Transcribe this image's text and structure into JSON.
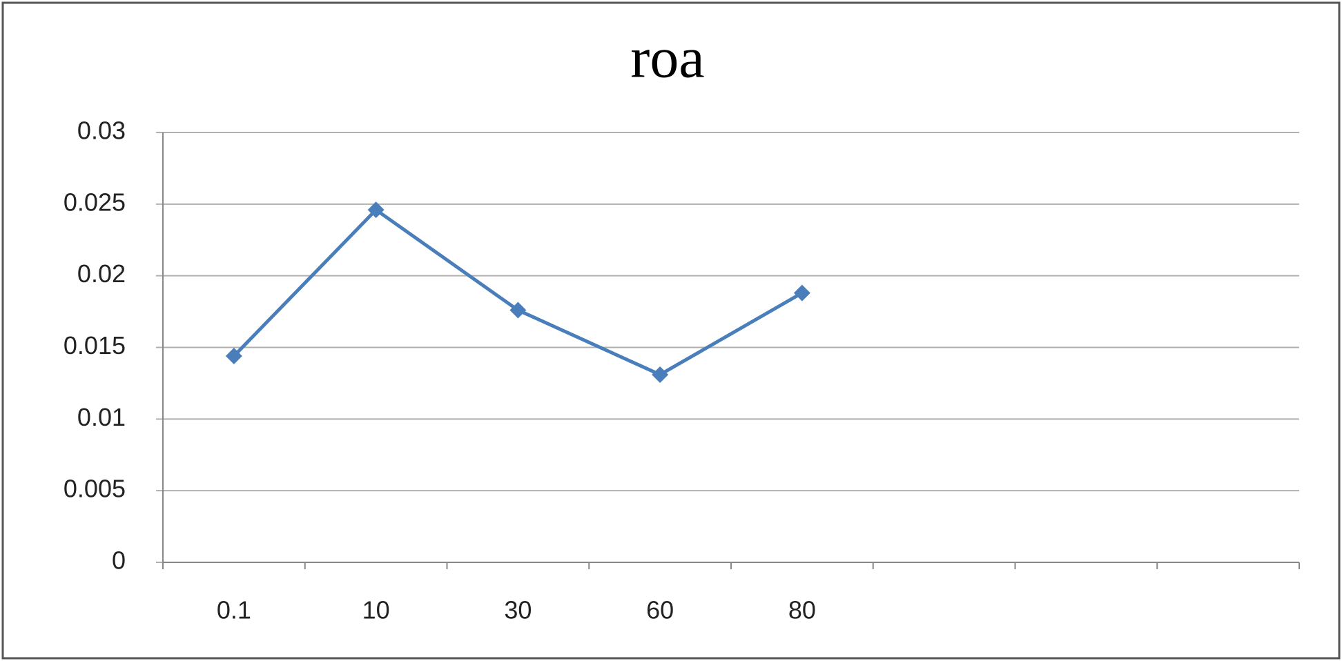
{
  "chart_data": {
    "type": "line",
    "title": "roa",
    "categories": [
      "0.1",
      "10",
      "30",
      "60",
      "80",
      null,
      null,
      null
    ],
    "series": [
      {
        "name": "roa",
        "color": "#4a7ebb",
        "values": [
          0.0144,
          0.0246,
          0.0176,
          0.0131,
          0.0188,
          null,
          null,
          null
        ]
      }
    ],
    "ylim": [
      0,
      0.03
    ],
    "yticks": [
      0,
      0.005,
      0.01,
      0.015,
      0.02,
      0.025,
      0.03
    ],
    "grid": true
  }
}
